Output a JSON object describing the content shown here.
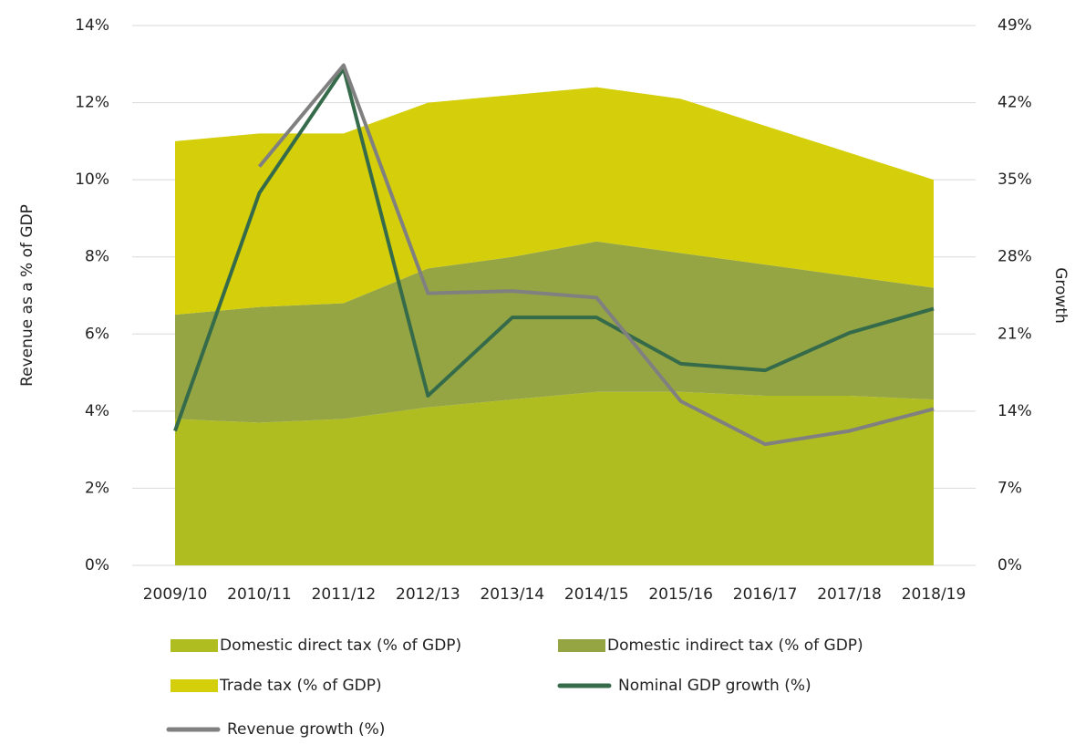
{
  "chart_data": {
    "type": "area",
    "y_label": "Revenue as a % of GDP",
    "y2_label": "Growth",
    "categories": [
      "2009/10",
      "2010/11",
      "2011/12",
      "2012/13",
      "2013/14",
      "2014/15",
      "2015/16",
      "2016/17",
      "2017/18",
      "2018/19"
    ],
    "series": [
      {
        "name": "Domestic direct tax (% of GDP)",
        "type": "area",
        "color": "#afbd21",
        "values": [
          3.8,
          3.7,
          3.8,
          4.1,
          4.3,
          4.5,
          4.5,
          4.4,
          4.4,
          4.3
        ]
      },
      {
        "name": "Domestic indirect tax (% of GDP)",
        "type": "area",
        "color": "#95a543",
        "values": [
          2.7,
          3.0,
          3.0,
          3.6,
          3.7,
          3.9,
          3.6,
          3.4,
          3.1,
          2.9
        ]
      },
      {
        "name": "Trade tax (% of GDP)",
        "type": "area",
        "color": "#d4cf0a",
        "values": [
          4.5,
          4.5,
          4.4,
          4.3,
          4.2,
          4.0,
          4.0,
          3.6,
          3.2,
          2.8
        ]
      },
      {
        "name": "Nominal GDP growth (%)",
        "type": "line",
        "axis": "y2",
        "color": "#356b4a",
        "values": [
          12.2,
          33.8,
          45.1,
          15.4,
          22.5,
          22.5,
          18.3,
          17.7,
          21.1,
          23.3
        ]
      },
      {
        "name": "Revenue growth (%)",
        "type": "line",
        "axis": "y2",
        "color": "#808080",
        "values": [
          null,
          36.2,
          45.4,
          24.7,
          24.9,
          24.3,
          14.9,
          11.0,
          12.2,
          14.2
        ]
      }
    ],
    "ylim": [
      0,
      14
    ],
    "yticks": [
      {
        "value": 0,
        "label": "0%"
      },
      {
        "value": 2,
        "label": "2%"
      },
      {
        "value": 4,
        "label": "4%"
      },
      {
        "value": 6,
        "label": "6%"
      },
      {
        "value": 8,
        "label": "8%"
      },
      {
        "value": 10,
        "label": "10%"
      },
      {
        "value": 12,
        "label": "12%"
      },
      {
        "value": 14,
        "label": "14%"
      }
    ],
    "y2lim": [
      0,
      49
    ],
    "y2ticks": [
      {
        "value": 0,
        "label": "0%"
      },
      {
        "value": 7,
        "label": "7%"
      },
      {
        "value": 14,
        "label": "14%"
      },
      {
        "value": 21,
        "label": "21%"
      },
      {
        "value": 28,
        "label": "28%"
      },
      {
        "value": 35,
        "label": "35%"
      },
      {
        "value": 42,
        "label": "42%"
      },
      {
        "value": 49,
        "label": "49%"
      }
    ],
    "grid": true
  }
}
